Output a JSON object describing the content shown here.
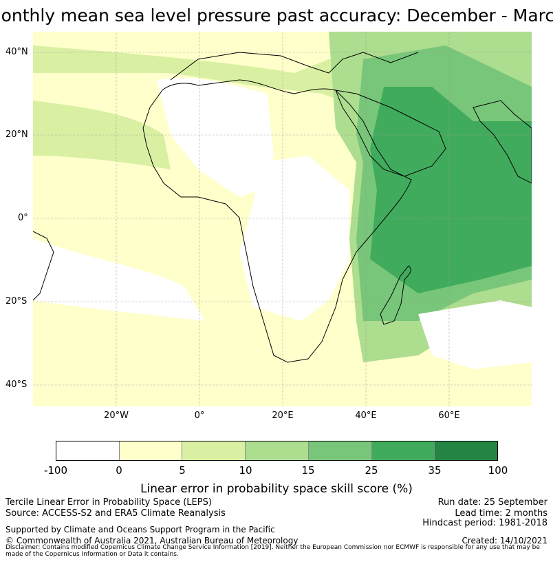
{
  "title": "Monthly mean sea level pressure past accuracy: December - March",
  "map": {
    "lat_labels": [
      "40°N",
      "20°N",
      "0°",
      "20°S",
      "40°S"
    ],
    "lon_labels": [
      "20°W",
      "0°",
      "20°E",
      "40°E",
      "60°E"
    ]
  },
  "colorbar": {
    "ticks": [
      "-100",
      "0",
      "5",
      "10",
      "15",
      "25",
      "35",
      "100"
    ],
    "colors": [
      "#ffffff",
      "#ffffcc",
      "#d9f0a3",
      "#addd8e",
      "#78c679",
      "#41ab5d",
      "#238443"
    ],
    "label": "Linear error in probability space skill score (%)"
  },
  "footer": {
    "line1": "Tercile Linear Error in Probability Space (LEPS)",
    "line2": "Source: ACCESS-S2 and ERA5 Climate Reanalysis",
    "line3": "Supported by Climate and Oceans Support Program in the Pacific",
    "line4": "© Commonwealth of Australia 2021, Australian Bureau of Meteorology",
    "run_date": "Run date: 25 September",
    "lead_time": "Lead time: 2 months",
    "hindcast": "Hindcast period: 1981-2018",
    "created": "Created: 14/10/2021",
    "disclaimer": "Disclaimer: Contains modified Copernicus Climate Change Service Information [2019]. Neither the European Commission nor ECMWF is responsible for any use that may be made of the Copernicus Information or Data it contains."
  }
}
